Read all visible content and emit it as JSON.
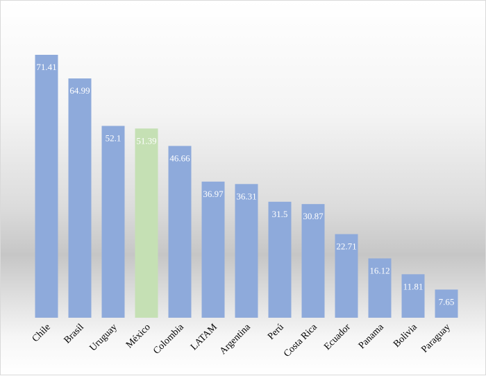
{
  "chart_data": {
    "type": "bar",
    "title": "",
    "xlabel": "",
    "ylabel": "",
    "ylim": [
      0,
      80
    ],
    "grid": false,
    "legend": "none",
    "categories": [
      "Chile",
      "Brasil",
      "Uruguay",
      "México",
      "Colombia",
      "LATAM",
      "Argentina",
      "Perú",
      "Costa Rica",
      "Ecuador",
      "Panama",
      "Bolivia",
      "Paraguay"
    ],
    "values": [
      71.41,
      64.99,
      52.1,
      51.39,
      46.66,
      36.97,
      36.31,
      31.5,
      30.87,
      22.71,
      16.12,
      11.81,
      7.65
    ],
    "data_labels": [
      "71.41",
      "64.99",
      "52.1",
      "51.39",
      "46.66",
      "36.97",
      "36.31",
      "31.5",
      "30.87",
      "22.71",
      "16.12",
      "11.81",
      "7.65"
    ],
    "colors": {
      "default_bar": "#8eaadb",
      "highlight_bar": "#c5e0b4",
      "highlight_category": "México",
      "label_text": "#ffffff"
    }
  }
}
